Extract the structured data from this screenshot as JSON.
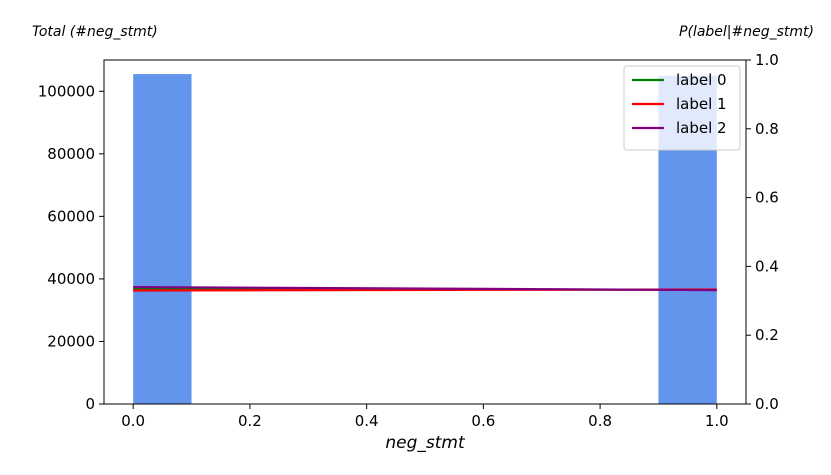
{
  "chart_data": {
    "type": "bar",
    "xlabel": "neg_stmt",
    "ylabel_left": "Total (#neg_stmt)",
    "ylabel_right": "P(label|#neg_stmt)",
    "xlim": [
      -0.05,
      1.05
    ],
    "ylim_left": [
      0,
      110000
    ],
    "ylim_right": [
      0,
      1.0
    ],
    "x_ticks": [
      "0.0",
      "0.2",
      "0.4",
      "0.6",
      "0.8",
      "1.0"
    ],
    "y_left_ticks": [
      "0",
      "20000",
      "40000",
      "60000",
      "80000",
      "100000"
    ],
    "y_right_ticks": [
      "0.0",
      "0.2",
      "0.4",
      "0.6",
      "0.8",
      "1.0"
    ],
    "histogram": {
      "color": "#6495ED",
      "bins": [
        {
          "x0": 0.0,
          "x1": 0.1,
          "count": 105500
        },
        {
          "x0": 0.9,
          "x1": 1.0,
          "count": 105000
        }
      ]
    },
    "series": [
      {
        "name": "label 0",
        "color": "#008000",
        "x": [
          0,
          1
        ],
        "values": [
          0.335,
          0.332
        ]
      },
      {
        "name": "label 1",
        "color": "#ff0000",
        "x": [
          0,
          1
        ],
        "values": [
          0.33,
          0.333
        ]
      },
      {
        "name": "label 2",
        "color": "#800080",
        "x": [
          0,
          1
        ],
        "values": [
          0.34,
          0.331
        ]
      }
    ],
    "legend_position": "top-right",
    "grid": false
  }
}
